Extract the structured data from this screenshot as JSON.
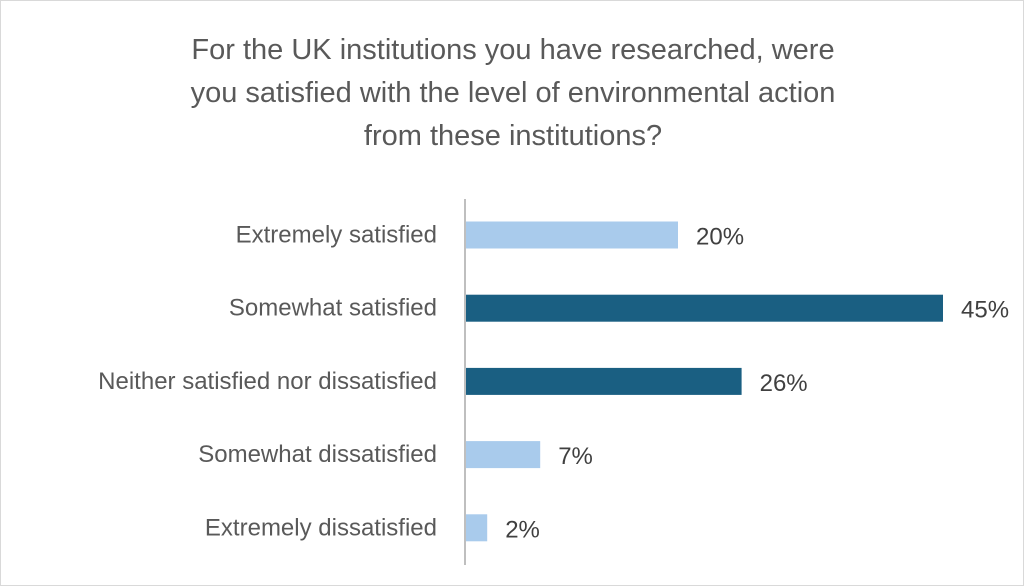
{
  "chart_data": {
    "type": "bar",
    "orientation": "horizontal",
    "title_lines": [
      "For the UK institutions you have researched, were",
      "you satisfied  with the level of environmental action",
      "from these institutions?"
    ],
    "categories": [
      "Extremely satisfied",
      "Somewhat satisfied",
      "Neither satisfied nor dissatisfied",
      "Somewhat dissatisfied",
      "Extremely dissatisfied"
    ],
    "values": [
      20,
      45,
      26,
      7,
      2
    ],
    "value_labels": [
      "20%",
      "45%",
      "26%",
      "7%",
      "2%"
    ],
    "unit": "%",
    "xlim": [
      0,
      45
    ],
    "grid": false,
    "legend": "none",
    "colors": [
      "#a9cbec",
      "#1a5f82",
      "#1a5f82",
      "#a9cbec",
      "#a9cbec"
    ],
    "axis_color": "#bfbfbf"
  }
}
